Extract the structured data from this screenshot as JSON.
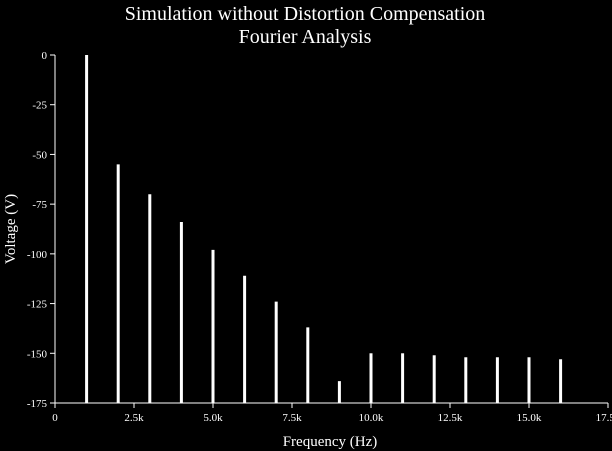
{
  "chart_data": {
    "type": "bar",
    "title": [
      "Simulation without Distortion Compensation",
      "Fourier Analysis"
    ],
    "xlabel": "Frequency (Hz)",
    "ylabel": "Voltage (V)",
    "xlim": [
      0,
      17500
    ],
    "ylim": [
      -175,
      0
    ],
    "xticks": [
      {
        "value": 0,
        "label": "0"
      },
      {
        "value": 2500,
        "label": "2.5k"
      },
      {
        "value": 5000,
        "label": "5.0k"
      },
      {
        "value": 7500,
        "label": "7.5k"
      },
      {
        "value": 10000,
        "label": "10.0k"
      },
      {
        "value": 12500,
        "label": "12.5k"
      },
      {
        "value": 15000,
        "label": "15.0k"
      },
      {
        "value": 17500,
        "label": "17.5k"
      }
    ],
    "yticks": [
      {
        "value": 0,
        "label": "0"
      },
      {
        "value": -25,
        "label": "-25"
      },
      {
        "value": -50,
        "label": "-50"
      },
      {
        "value": -75,
        "label": "-75"
      },
      {
        "value": -100,
        "label": "-100"
      },
      {
        "value": -125,
        "label": "-125"
      },
      {
        "value": -150,
        "label": "-150"
      },
      {
        "value": -175,
        "label": "-175"
      }
    ],
    "grid": false,
    "bar_color": "#ffffff",
    "background": "#000000",
    "series": [
      {
        "x": [
          1000,
          2000,
          3000,
          4000,
          5000,
          6000,
          7000,
          8000,
          9000,
          10000,
          11000,
          12000,
          13000,
          14000,
          15000,
          16000
        ],
        "values": [
          0,
          -55,
          -70,
          -84,
          -98,
          -111,
          -124,
          -137,
          -164,
          -150,
          -150,
          -151,
          -152,
          -152,
          -152,
          -153
        ]
      }
    ]
  }
}
